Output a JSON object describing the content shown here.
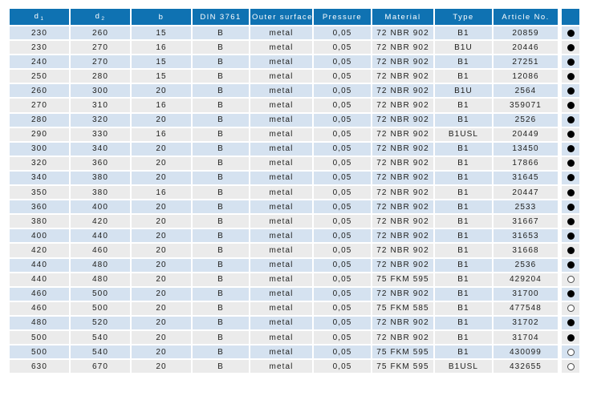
{
  "colors": {
    "header_bg": "#0f72b2",
    "header_text": "#ffffff",
    "row_blue": "#d5e2f0",
    "row_gray": "#ebebeb",
    "body_text": "#1d1d1b",
    "dot_color": "#000000",
    "dot_ring": "#4a4a4a"
  },
  "table": {
    "columns": [
      {
        "id": "d1",
        "label": "d",
        "sub": "1"
      },
      {
        "id": "d2",
        "label": "d",
        "sub": "2"
      },
      {
        "id": "b",
        "label": "b"
      },
      {
        "id": "din",
        "label": "DIN 3761"
      },
      {
        "id": "outer-surface",
        "label": "Outer surface"
      },
      {
        "id": "pressure",
        "label": "Pressure"
      },
      {
        "id": "material",
        "label": "Material"
      },
      {
        "id": "type",
        "label": "Type"
      },
      {
        "id": "article-no",
        "label": "Article No."
      },
      {
        "id": "availability",
        "label": ""
      }
    ],
    "rows": [
      [
        "230",
        "260",
        "15",
        "B",
        "metal",
        "0,05",
        "72 NBR 902",
        "B1",
        "20859",
        "filled"
      ],
      [
        "230",
        "270",
        "16",
        "B",
        "metal",
        "0,05",
        "72 NBR 902",
        "B1U",
        "20446",
        "filled"
      ],
      [
        "240",
        "270",
        "15",
        "B",
        "metal",
        "0,05",
        "72 NBR 902",
        "B1",
        "27251",
        "filled"
      ],
      [
        "250",
        "280",
        "15",
        "B",
        "metal",
        "0,05",
        "72 NBR 902",
        "B1",
        "12086",
        "filled"
      ],
      [
        "260",
        "300",
        "20",
        "B",
        "metal",
        "0,05",
        "72 NBR 902",
        "B1U",
        "2564",
        "filled"
      ],
      [
        "270",
        "310",
        "16",
        "B",
        "metal",
        "0,05",
        "72 NBR 902",
        "B1",
        "359071",
        "filled"
      ],
      [
        "280",
        "320",
        "20",
        "B",
        "metal",
        "0,05",
        "72 NBR 902",
        "B1",
        "2526",
        "filled"
      ],
      [
        "290",
        "330",
        "16",
        "B",
        "metal",
        "0,05",
        "72 NBR 902",
        "B1USL",
        "20449",
        "filled"
      ],
      [
        "300",
        "340",
        "20",
        "B",
        "metal",
        "0,05",
        "72 NBR 902",
        "B1",
        "13450",
        "filled"
      ],
      [
        "320",
        "360",
        "20",
        "B",
        "metal",
        "0,05",
        "72 NBR 902",
        "B1",
        "17866",
        "filled"
      ],
      [
        "340",
        "380",
        "20",
        "B",
        "metal",
        "0,05",
        "72 NBR 902",
        "B1",
        "31645",
        "filled"
      ],
      [
        "350",
        "380",
        "16",
        "B",
        "metal",
        "0,05",
        "72 NBR 902",
        "B1",
        "20447",
        "filled"
      ],
      [
        "360",
        "400",
        "20",
        "B",
        "metal",
        "0,05",
        "72 NBR 902",
        "B1",
        "2533",
        "filled"
      ],
      [
        "380",
        "420",
        "20",
        "B",
        "metal",
        "0,05",
        "72 NBR 902",
        "B1",
        "31667",
        "filled"
      ],
      [
        "400",
        "440",
        "20",
        "B",
        "metal",
        "0,05",
        "72 NBR 902",
        "B1",
        "31653",
        "filled"
      ],
      [
        "420",
        "460",
        "20",
        "B",
        "metal",
        "0,05",
        "72 NBR 902",
        "B1",
        "31668",
        "filled"
      ],
      [
        "440",
        "480",
        "20",
        "B",
        "metal",
        "0,05",
        "72 NBR 902",
        "B1",
        "2536",
        "filled"
      ],
      [
        "440",
        "480",
        "20",
        "B",
        "metal",
        "0,05",
        "75 FKM 595",
        "B1",
        "429204",
        "hollow"
      ],
      [
        "460",
        "500",
        "20",
        "B",
        "metal",
        "0,05",
        "72 NBR 902",
        "B1",
        "31700",
        "filled"
      ],
      [
        "460",
        "500",
        "20",
        "B",
        "metal",
        "0,05",
        "75 FKM 585",
        "B1",
        "477548",
        "hollow"
      ],
      [
        "480",
        "520",
        "20",
        "B",
        "metal",
        "0,05",
        "72 NBR 902",
        "B1",
        "31702",
        "filled"
      ],
      [
        "500",
        "540",
        "20",
        "B",
        "metal",
        "0,05",
        "72 NBR 902",
        "B1",
        "31704",
        "filled"
      ],
      [
        "500",
        "540",
        "20",
        "B",
        "metal",
        "0,05",
        "75 FKM 595",
        "B1",
        "430099",
        "hollow"
      ],
      [
        "630",
        "670",
        "20",
        "B",
        "metal",
        "0,05",
        "75 FKM 595",
        "B1USL",
        "432655",
        "hollow"
      ]
    ]
  }
}
